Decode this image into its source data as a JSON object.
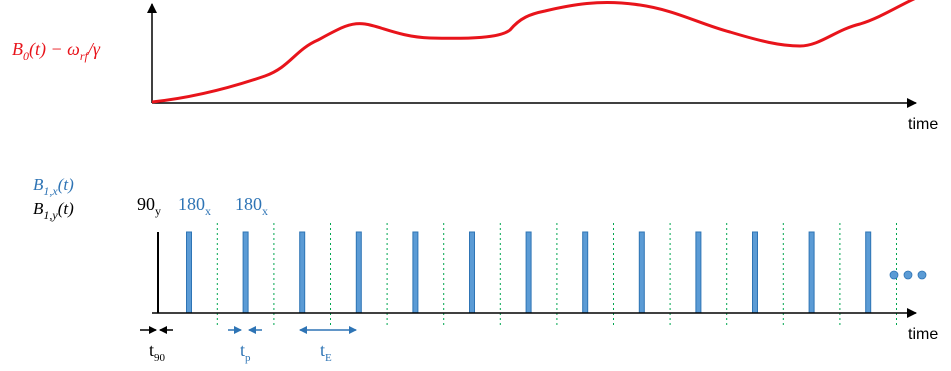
{
  "colors": {
    "field_curve": "#e8141b",
    "rf_x": "#2e74b5",
    "rf_x_fill": "#5b9bd5",
    "rf_y": "#000000",
    "echo_marker": "#00a650",
    "axis": "#000000"
  },
  "top_plot": {
    "ylabel": {
      "B": "B",
      "sub0": "0",
      "t": "(t) − ω",
      "rf": "rf",
      "gamma": "/γ"
    },
    "xlabel": "time"
  },
  "bottom_plot": {
    "legend_x": {
      "B": "B",
      "sub": "1,x",
      "t": "(t)"
    },
    "legend_y": {
      "B": "B",
      "sub": "1,y",
      "t": "(t)"
    },
    "pulse_labels": [
      {
        "main": "90",
        "sub": "y",
        "color": "rf_y"
      },
      {
        "main": "180",
        "sub": "x",
        "color": "rf_x"
      },
      {
        "main": "180",
        "sub": "x",
        "color": "rf_x"
      }
    ],
    "xlabel": "time",
    "pulse_count": 13,
    "echo_marker_count": 13,
    "continuation_dots": 3,
    "intervals": [
      {
        "main": "t",
        "sub": "90",
        "color": "rf_y"
      },
      {
        "main": "t",
        "sub": "p",
        "color": "rf_x"
      },
      {
        "main": "t",
        "sub": "E",
        "color": "rf_x"
      }
    ]
  }
}
